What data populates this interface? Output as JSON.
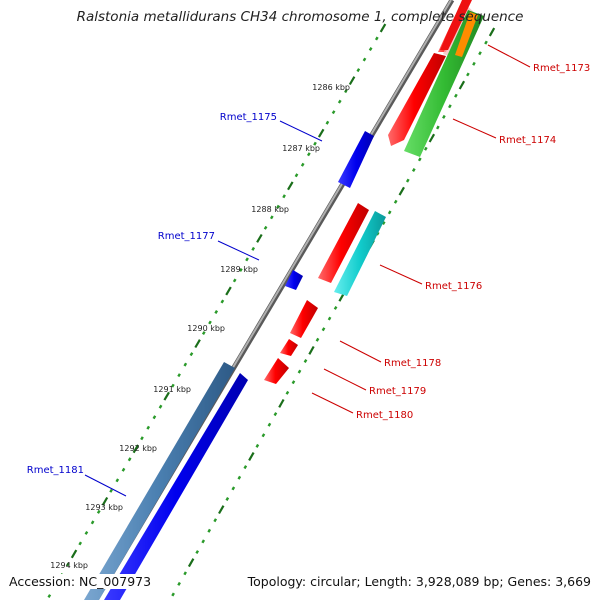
{
  "title": "Ralstonia metallidurans CH34 chromosome 1, complete sequence",
  "footer": {
    "accession": "Accession: NC_007973",
    "topology": "Topology: circular; Length: 3,928,089 bp; Genes: 3,669"
  },
  "colors": {
    "backbone": "#888888",
    "tick_major": "#1a6e1a",
    "tick_minor": "#2a9a2a",
    "forward_label": "#0000cc",
    "reverse_label": "#cc0000",
    "gene_red": "#e60000",
    "gene_blue": "#0000e6",
    "gene_steel": "#3f6f9f",
    "gene_green": "#33bb33",
    "gene_cyan": "#11c6c6",
    "gene_orange": "#ff8c00",
    "gene_pink": "#f4b8b8"
  },
  "scale_labels": [
    "1286 kbp",
    "1287 kbp",
    "1288 kbp",
    "1289 kbp",
    "1290 kbp",
    "1291 kbp",
    "1292 kbp",
    "1293 kbp",
    "1294 kbp"
  ],
  "gene_labels": [
    {
      "name": "Rmet_1173",
      "strand": "reverse"
    },
    {
      "name": "Rmet_1174",
      "strand": "reverse"
    },
    {
      "name": "Rmet_1175",
      "strand": "forward"
    },
    {
      "name": "Rmet_1176",
      "strand": "reverse"
    },
    {
      "name": "Rmet_1177",
      "strand": "forward"
    },
    {
      "name": "Rmet_1178",
      "strand": "reverse"
    },
    {
      "name": "Rmet_1179",
      "strand": "reverse"
    },
    {
      "name": "Rmet_1180",
      "strand": "reverse"
    },
    {
      "name": "Rmet_1181",
      "strand": "forward"
    }
  ]
}
